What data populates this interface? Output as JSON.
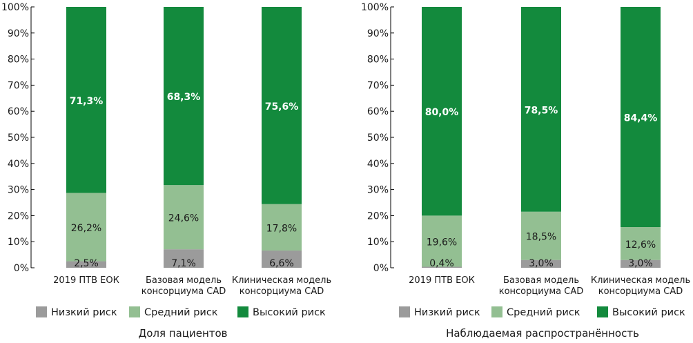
{
  "colors": {
    "low": "#9b9b9b",
    "medium": "#93bf92",
    "high": "#138a3d"
  },
  "legend": [
    {
      "key": "low",
      "label": "Низкий риск"
    },
    {
      "key": "medium",
      "label": "Средний риск"
    },
    {
      "key": "high",
      "label": "Высокий риск"
    }
  ],
  "chart_data": [
    {
      "type": "bar",
      "stacked": true,
      "title": "Доля пациентов",
      "categories": [
        [
          "2019 ПТВ ЕОК"
        ],
        [
          "Базовая модель",
          "консорциума CAD"
        ],
        [
          "Клиническая модель",
          "консорциума CAD"
        ]
      ],
      "ylim": [
        0,
        100
      ],
      "yticks": [
        "0%",
        "10%",
        "20%",
        "30%",
        "40%",
        "50%",
        "60%",
        "70%",
        "80%",
        "90%",
        "100%"
      ],
      "legend_position": "bottom",
      "series": [
        {
          "name": "Низкий риск",
          "key": "low",
          "values": [
            2.5,
            7.1,
            6.6
          ],
          "labels": [
            "2,5%",
            "7,1%",
            "6,6%"
          ]
        },
        {
          "name": "Средний риск",
          "key": "medium",
          "values": [
            26.2,
            24.6,
            17.8
          ],
          "labels": [
            "26,2%",
            "24,6%",
            "17,8%"
          ]
        },
        {
          "name": "Высокий риск",
          "key": "high",
          "values": [
            71.3,
            68.3,
            75.6
          ],
          "labels": [
            "71,3%",
            "68,3%",
            "75,6%"
          ]
        }
      ]
    },
    {
      "type": "bar",
      "stacked": true,
      "title": "Наблюдаемая распространённость",
      "categories": [
        [
          "2019 ПТВ ЕОК"
        ],
        [
          "Базовая модель",
          "консорциума CAD"
        ],
        [
          "Клиническая модель",
          "консорциума CAD"
        ]
      ],
      "ylim": [
        0,
        100
      ],
      "yticks": [
        "0%",
        "10%",
        "20%",
        "30%",
        "40%",
        "50%",
        "60%",
        "70%",
        "80%",
        "90%",
        "100%"
      ],
      "legend_position": "bottom",
      "series": [
        {
          "name": "Низкий риск",
          "key": "low",
          "values": [
            0.4,
            3.0,
            3.0
          ],
          "labels": [
            "0,4%",
            "3,0%",
            "3,0%"
          ]
        },
        {
          "name": "Средний риск",
          "key": "medium",
          "values": [
            19.6,
            18.5,
            12.6
          ],
          "labels": [
            "19,6%",
            "18,5%",
            "12,6%"
          ]
        },
        {
          "name": "Высокий риск",
          "key": "high",
          "values": [
            80.0,
            78.5,
            84.4
          ],
          "labels": [
            "80,0%",
            "78,5%",
            "84,4%"
          ]
        }
      ]
    }
  ]
}
